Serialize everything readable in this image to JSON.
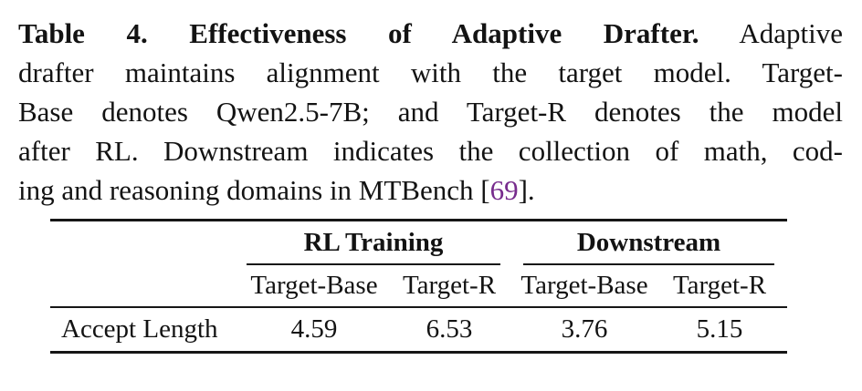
{
  "caption": {
    "line1_bold": "Table 4. Effectiveness of Adaptive Drafter.",
    "line1_rest": "Adaptive",
    "line2": "drafter maintains alignment with the target model. Target-",
    "line3": "Base denotes Qwen2.5-7B; and Target-R denotes the model",
    "line4": "after RL. Downstream indicates the collection of math, cod-",
    "line5_pre": "ing and reasoning domains in MTBench [",
    "line5_cite": "69",
    "line5_post": "]."
  },
  "table": {
    "groups": [
      {
        "label": "RL Training"
      },
      {
        "label": "Downstream"
      }
    ],
    "columns": [
      "Target-Base",
      "Target-R",
      "Target-Base",
      "Target-R"
    ],
    "rows": [
      {
        "label": "Accept Length",
        "values": [
          "4.59",
          "6.53",
          "3.76",
          "5.15"
        ]
      }
    ]
  },
  "colors": {
    "citation_link": "#772C8D",
    "text": "#131313"
  }
}
